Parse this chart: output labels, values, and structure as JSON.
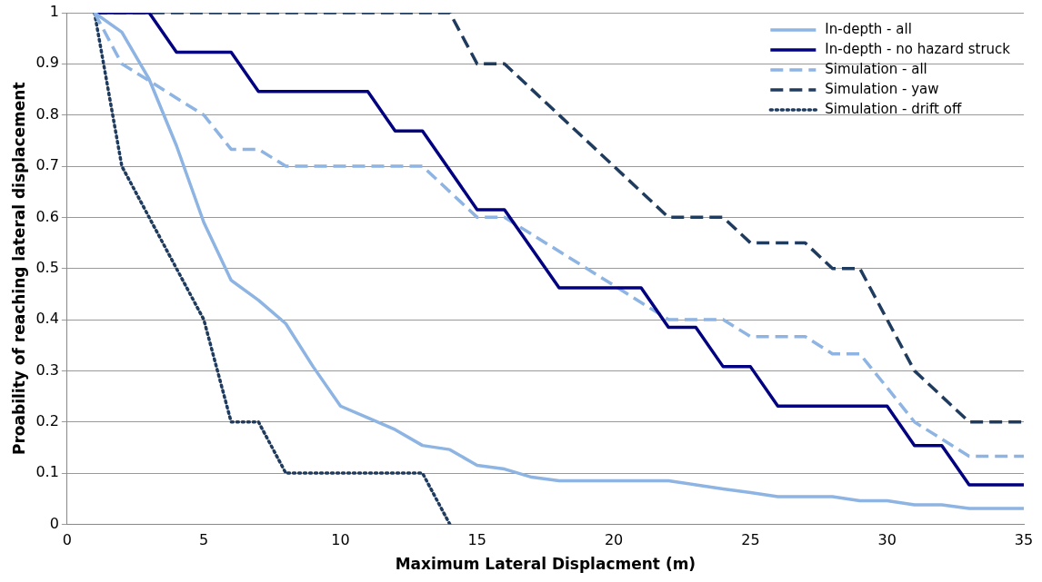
{
  "chart_data": {
    "type": "line",
    "xlabel": "Maximum Lateral Displacment (m)",
    "ylabel": "Proability of reaching lateral displacement",
    "xlim": [
      0,
      35
    ],
    "xticks": [
      0,
      5,
      10,
      15,
      20,
      25,
      30,
      35
    ],
    "ylim": [
      0,
      1
    ],
    "yticks": [
      0,
      0.1,
      0.2,
      0.3,
      0.4,
      0.5,
      0.6,
      0.7,
      0.8,
      0.9,
      1
    ],
    "grid": "y",
    "legend": "top right",
    "marker": "none",
    "series": [
      {
        "name": "In-depth - all",
        "color": "#8db4e2",
        "line_style": "solid",
        "x": [
          1,
          2,
          3,
          4,
          5,
          6,
          7,
          8,
          9,
          10,
          11,
          12,
          13,
          14,
          15,
          16,
          17,
          18,
          19,
          20,
          21,
          22,
          23,
          24,
          25,
          26,
          27,
          28,
          29,
          30,
          31,
          32,
          33,
          34,
          35
        ],
        "values": [
          1,
          0.962,
          0.87,
          0.74,
          0.59,
          0.477,
          0.438,
          0.392,
          0.308,
          0.231,
          0.208,
          0.185,
          0.154,
          0.146,
          0.115,
          0.108,
          0.092,
          0.085,
          0.085,
          0.085,
          0.085,
          0.085,
          0.077,
          0.069,
          0.062,
          0.054,
          0.054,
          0.054,
          0.046,
          0.046,
          0.038,
          0.038,
          0.031,
          0.031,
          0.031
        ]
      },
      {
        "name": "In-depth - no hazard struck",
        "color": "#000080",
        "line_style": "solid",
        "x": [
          1,
          3,
          4,
          6,
          7,
          11,
          12,
          13,
          15,
          16,
          18,
          21,
          22,
          23,
          24,
          25,
          26,
          30,
          31,
          32,
          33,
          35
        ],
        "values": [
          1,
          1,
          0.923,
          0.923,
          0.846,
          0.846,
          0.769,
          0.769,
          0.615,
          0.615,
          0.462,
          0.462,
          0.385,
          0.385,
          0.308,
          0.308,
          0.231,
          0.231,
          0.154,
          0.154,
          0.077,
          0.077
        ]
      },
      {
        "name": "Simulation - all",
        "color": "#8db4e2",
        "line_style": "dashed",
        "x": [
          1,
          2,
          3,
          4,
          5,
          6,
          7,
          8,
          13,
          15,
          16,
          20,
          22,
          24,
          25,
          27,
          28,
          29,
          30,
          31,
          33,
          35
        ],
        "values": [
          1,
          0.9,
          0.867,
          0.833,
          0.8,
          0.733,
          0.733,
          0.7,
          0.7,
          0.6,
          0.6,
          0.467,
          0.4,
          0.4,
          0.367,
          0.367,
          0.333,
          0.333,
          0.267,
          0.2,
          0.133,
          0.133
        ]
      },
      {
        "name": "Simulation - yaw",
        "color": "#1f3b5e",
        "line_style": "dashed",
        "x": [
          1,
          14,
          15,
          16,
          22,
          24,
          25,
          27,
          28,
          29,
          31,
          33,
          35
        ],
        "values": [
          1,
          1,
          0.9,
          0.9,
          0.6,
          0.6,
          0.55,
          0.55,
          0.5,
          0.5,
          0.3,
          0.2,
          0.2
        ]
      },
      {
        "name": "Simulation - drift off",
        "color": "#1f3b5e",
        "line_style": "dotted",
        "x": [
          1,
          2,
          3,
          4,
          5,
          6,
          7,
          8,
          13,
          14
        ],
        "values": [
          1,
          0.7,
          0.6,
          0.5,
          0.4,
          0.2,
          0.2,
          0.1,
          0.1,
          0
        ]
      }
    ]
  }
}
